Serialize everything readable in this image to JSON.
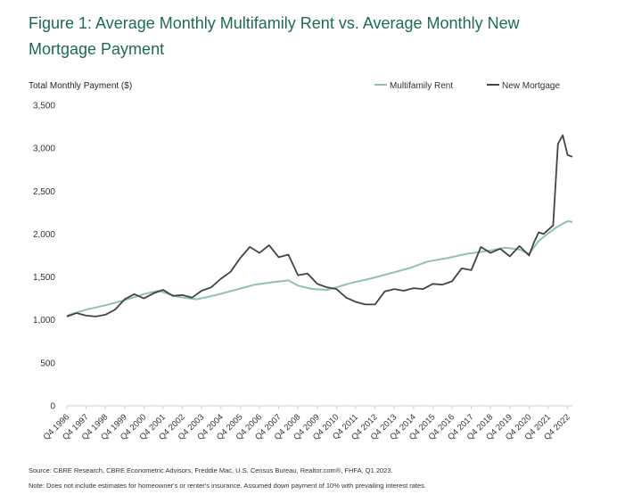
{
  "title": "Figure 1: Average Monthly Multifamily Rent vs. Average Monthly New Mortgage Payment",
  "source": "Source: CBRE Research, CBRE Econometric Advisors, Freddie Mac, U.S. Census Bureau, Realtor.com®, FHFA, Q1 2023.",
  "note": "Note: Does not include estimates for homeowner's or renter's insurance. Assumed down payment of 10% with prevailing interest rates.",
  "colors": {
    "title": "#1f6b4e",
    "rent": "#8fc4a5",
    "mortgage": "#3d4644",
    "grid": "#d9d9d9"
  },
  "chart_data": {
    "type": "line",
    "ylabel": "Total Monthly Payment ($)",
    "ylim": [
      0,
      3500
    ],
    "yticks": [
      0,
      500,
      1000,
      1500,
      2000,
      2500,
      3000,
      3500
    ],
    "ytick_labels": [
      "0",
      "500",
      "1,000",
      "1,500",
      "2,000",
      "2,500",
      "3,000",
      "3,500"
    ],
    "xlim": [
      1996.75,
      2023.0
    ],
    "xticks": [
      1996.75,
      1997.75,
      1998.75,
      1999.75,
      2000.75,
      2001.75,
      2002.75,
      2003.75,
      2004.75,
      2005.75,
      2006.75,
      2007.75,
      2008.75,
      2009.75,
      2010.75,
      2011.75,
      2012.75,
      2013.75,
      2014.75,
      2015.75,
      2016.75,
      2017.75,
      2018.75,
      2019.75,
      2020.75,
      2021.75,
      2022.75
    ],
    "xtick_labels": [
      "Q4 1996",
      "Q4 1997",
      "Q4 1998",
      "Q4 1999",
      "Q4 2000",
      "Q4 2001",
      "Q4 2002",
      "Q4 2003",
      "Q4 2004",
      "Q4 2005",
      "Q4 2006",
      "Q4 2007",
      "Q4 2008",
      "Q4 2009",
      "Q4 2010",
      "Q4 2011",
      "Q4 2012",
      "Q4 2013",
      "Q4 2014",
      "Q4 2015",
      "Q4 2016",
      "Q4 2017",
      "Q4 2018",
      "Q4 2019",
      "Q4 2020",
      "Q4 2021",
      "Q4 2022"
    ],
    "legend_position": "top-right",
    "grid": false,
    "series": [
      {
        "name": "Multifamily Rent",
        "x": [
          1996.75,
          1997.75,
          1998.75,
          1999.75,
          2000.75,
          2001.5,
          2002.5,
          2003.5,
          2004.5,
          2005.5,
          2006.5,
          2007.5,
          2008.25,
          2008.75,
          2009.5,
          2010.25,
          2010.75,
          2011.5,
          2012.5,
          2013.5,
          2014.5,
          2015.5,
          2016.5,
          2017.5,
          2018.5,
          2019.5,
          2020.25,
          2020.75,
          2021.25,
          2021.75,
          2022.25,
          2022.75,
          2023.0
        ],
        "y": [
          1050,
          1120,
          1170,
          1230,
          1300,
          1340,
          1270,
          1240,
          1290,
          1350,
          1410,
          1440,
          1460,
          1400,
          1360,
          1350,
          1380,
          1430,
          1480,
          1540,
          1600,
          1680,
          1720,
          1770,
          1800,
          1840,
          1820,
          1770,
          1920,
          2010,
          2090,
          2150,
          2140
        ]
      },
      {
        "name": "New Mortgage",
        "x": [
          1996.75,
          1997.25,
          1997.75,
          1998.25,
          1998.75,
          1999.25,
          1999.75,
          2000.25,
          2000.75,
          2001.25,
          2001.75,
          2002.25,
          2002.75,
          2003.25,
          2003.75,
          2004.25,
          2004.75,
          2005.25,
          2005.75,
          2006.25,
          2006.75,
          2007.25,
          2007.75,
          2008.25,
          2008.75,
          2009.25,
          2009.75,
          2010.25,
          2010.75,
          2011.25,
          2011.75,
          2012.25,
          2012.75,
          2013.25,
          2013.75,
          2014.25,
          2014.75,
          2015.25,
          2015.75,
          2016.25,
          2016.75,
          2017.25,
          2017.75,
          2018.25,
          2018.75,
          2019.25,
          2019.75,
          2020.25,
          2020.75,
          2021.0,
          2021.25,
          2021.5,
          2021.75,
          2022.0,
          2022.25,
          2022.5,
          2022.75,
          2023.0
        ],
        "y": [
          1040,
          1080,
          1050,
          1040,
          1060,
          1120,
          1240,
          1300,
          1250,
          1310,
          1350,
          1280,
          1290,
          1260,
          1340,
          1380,
          1480,
          1560,
          1720,
          1850,
          1780,
          1870,
          1730,
          1760,
          1520,
          1540,
          1420,
          1380,
          1360,
          1260,
          1210,
          1180,
          1180,
          1330,
          1360,
          1340,
          1370,
          1360,
          1420,
          1410,
          1450,
          1600,
          1580,
          1850,
          1780,
          1830,
          1740,
          1860,
          1750,
          1900,
          2020,
          2000,
          2050,
          2100,
          3050,
          3150,
          2920,
          2900
        ]
      }
    ]
  }
}
